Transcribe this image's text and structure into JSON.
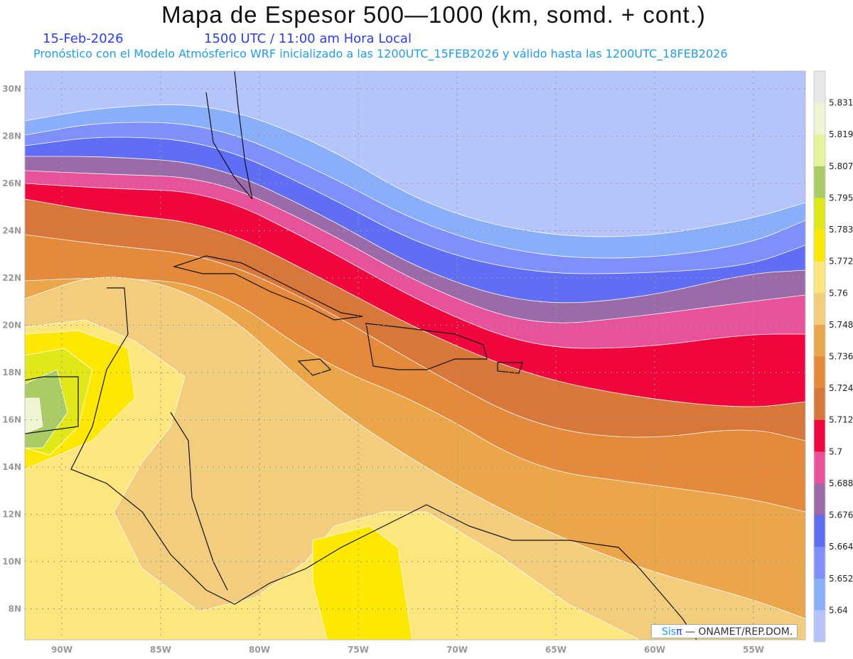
{
  "header": {
    "title": "Mapa de Espesor 500—1000 (km, somd. + cont.)",
    "date": "15-Feb-2026",
    "time": "1500 UTC / 11:00 am Hora Local",
    "subtitle": "Pronóstico con el Modelo Atmósferico WRF inicializado a las 1200UTC_15FEB2026 y válido hasta las  1200UTC_18FEB2026"
  },
  "map": {
    "lat_labels": [
      "30N",
      "28N",
      "26N",
      "24N",
      "22N",
      "20N",
      "18N",
      "16N",
      "14N",
      "12N",
      "10N",
      "8N"
    ],
    "lon_labels": [
      "90W",
      "85W",
      "80W",
      "75W",
      "70W",
      "65W",
      "60W",
      "55W"
    ]
  },
  "colorbar": {
    "labels": [
      "5.831",
      "5.819",
      "5.807",
      "5.795",
      "5.783",
      "5.772",
      "5.76",
      "5.748",
      "5.736",
      "5.724",
      "5.712",
      "5.7",
      "5.688",
      "5.676",
      "5.664",
      "5.652",
      "5.64"
    ],
    "colors": [
      "#e8e8e8",
      "#eef5d0",
      "#e5f39a",
      "#aacc66",
      "#e0e818",
      "#ffe800",
      "#fee67f",
      "#f2cd7e",
      "#eba64a",
      "#e48a3a",
      "#d8773a",
      "#f0063c",
      "#e8529a",
      "#9a6ba8",
      "#5f6ef5",
      "#7f8ffb",
      "#8aaffa",
      "#b5c5fb"
    ]
  },
  "credit": {
    "brand": "Sis",
    "pi": "π",
    "org": " —  ONAMET/REP.DOM."
  }
}
